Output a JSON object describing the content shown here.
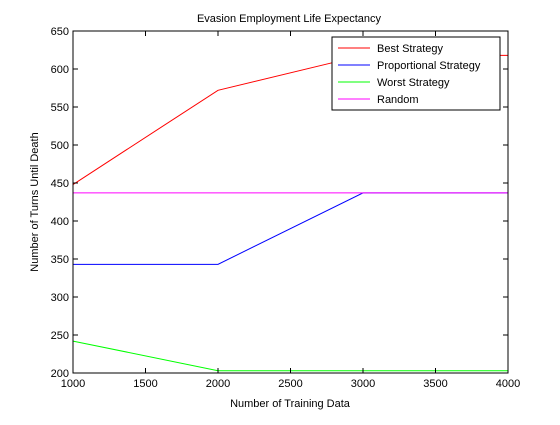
{
  "chart_data": {
    "type": "line",
    "title": "Evasion Employment Life Expectancy",
    "xlabel": "Number of Training Data",
    "ylabel": "Number of Turns Until Death",
    "xlim": [
      1000,
      4000
    ],
    "ylim": [
      200,
      650
    ],
    "xticks": [
      1000,
      1500,
      2000,
      2500,
      3000,
      3500,
      4000
    ],
    "yticks": [
      200,
      250,
      300,
      350,
      400,
      450,
      500,
      550,
      600,
      650
    ],
    "grid": false,
    "legend_position": "top-right",
    "x": [
      1000,
      2000,
      3000,
      4000
    ],
    "series": [
      {
        "name": "Best Strategy",
        "color": "#ff0000",
        "values": [
          448,
          572,
          618,
          618
        ]
      },
      {
        "name": "Proportional Strategy",
        "color": "#0000ff",
        "values": [
          343,
          343,
          437,
          437
        ]
      },
      {
        "name": "Worst Strategy",
        "color": "#00ff00",
        "values": [
          242,
          203,
          203,
          203
        ]
      },
      {
        "name": "Random",
        "color": "#ff00ff",
        "values": [
          437,
          437,
          437,
          437
        ]
      }
    ]
  }
}
